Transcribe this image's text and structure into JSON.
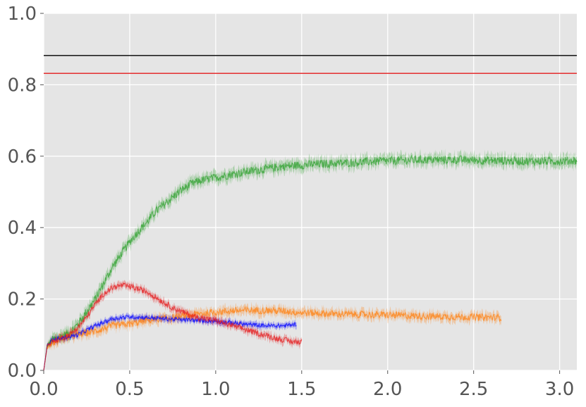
{
  "chart_data": {
    "type": "line",
    "title": "",
    "xlabel": "",
    "ylabel": "",
    "xlim": [
      0,
      3.1
    ],
    "ylim": [
      0,
      1.0
    ],
    "grid": true,
    "legend": "none",
    "background": "#e5e5e5",
    "x_ticks": [
      "0.0",
      "0.5",
      "1.0",
      "1.5",
      "2.0",
      "2.5",
      "3.0"
    ],
    "x_tick_values": [
      0.0,
      0.5,
      1.0,
      1.5,
      2.0,
      2.5,
      3.0
    ],
    "y_ticks": [
      "0.0",
      "0.2",
      "0.4",
      "0.6",
      "0.8",
      "1.0"
    ],
    "y_tick_values": [
      0.0,
      0.2,
      0.4,
      0.6,
      0.8,
      1.0
    ],
    "hlines": [
      {
        "y": 0.882,
        "color": "#000000"
      },
      {
        "y": 0.832,
        "color": "#e41a1c"
      }
    ],
    "series": [
      {
        "color": "#2ca02c",
        "noise": 0.012,
        "band": 0.015,
        "x": [
          0,
          0.02,
          0.05,
          0.1,
          0.15,
          0.2,
          0.25,
          0.3,
          0.35,
          0.4,
          0.45,
          0.5,
          0.55,
          0.6,
          0.65,
          0.7,
          0.75,
          0.8,
          0.85,
          0.9,
          0.95,
          1.0,
          1.1,
          1.2,
          1.3,
          1.4,
          1.5,
          1.6,
          1.7,
          1.8,
          1.9,
          2.0,
          2.2,
          2.4,
          2.6,
          2.8,
          3.0,
          3.1
        ],
        "values": [
          0.0,
          0.07,
          0.085,
          0.095,
          0.105,
          0.13,
          0.165,
          0.2,
          0.245,
          0.29,
          0.325,
          0.36,
          0.39,
          0.415,
          0.445,
          0.465,
          0.485,
          0.505,
          0.52,
          0.53,
          0.535,
          0.54,
          0.55,
          0.558,
          0.565,
          0.572,
          0.575,
          0.578,
          0.58,
          0.582,
          0.585,
          0.587,
          0.59,
          0.59,
          0.588,
          0.586,
          0.586,
          0.588
        ]
      },
      {
        "color": "#ff7f0e",
        "noise": 0.01,
        "band": 0.012,
        "x": [
          0,
          0.02,
          0.05,
          0.1,
          0.2,
          0.3,
          0.4,
          0.5,
          0.6,
          0.7,
          0.8,
          0.9,
          1.0,
          1.1,
          1.2,
          1.3,
          1.4,
          1.5,
          1.6,
          1.7,
          1.8,
          1.9,
          2.0,
          2.2,
          2.4,
          2.66
        ],
        "values": [
          0.0,
          0.065,
          0.078,
          0.09,
          0.1,
          0.11,
          0.125,
          0.13,
          0.14,
          0.145,
          0.15,
          0.158,
          0.163,
          0.167,
          0.168,
          0.168,
          0.166,
          0.162,
          0.16,
          0.158,
          0.157,
          0.156,
          0.155,
          0.152,
          0.15,
          0.148
        ]
      },
      {
        "color": "#0000ff",
        "noise": 0.006,
        "band": 0.008,
        "x": [
          0,
          0.02,
          0.05,
          0.1,
          0.2,
          0.3,
          0.4,
          0.5,
          0.6,
          0.7,
          0.8,
          0.9,
          1.0,
          1.1,
          1.2,
          1.3,
          1.4,
          1.47
        ],
        "values": [
          0.0,
          0.07,
          0.085,
          0.09,
          0.1,
          0.125,
          0.145,
          0.15,
          0.148,
          0.145,
          0.142,
          0.14,
          0.138,
          0.133,
          0.128,
          0.125,
          0.125,
          0.13
        ]
      },
      {
        "color": "#e41a1c",
        "noise": 0.008,
        "band": 0.01,
        "x": [
          0,
          0.02,
          0.05,
          0.1,
          0.15,
          0.2,
          0.25,
          0.3,
          0.35,
          0.4,
          0.45,
          0.5,
          0.55,
          0.6,
          0.65,
          0.7,
          0.75,
          0.8,
          0.85,
          0.9,
          0.95,
          1.0,
          1.05,
          1.1,
          1.15,
          1.2,
          1.25,
          1.3,
          1.35,
          1.4,
          1.45,
          1.5
        ],
        "values": [
          0.0,
          0.07,
          0.08,
          0.09,
          0.1,
          0.12,
          0.15,
          0.185,
          0.215,
          0.232,
          0.238,
          0.235,
          0.228,
          0.22,
          0.205,
          0.19,
          0.175,
          0.165,
          0.155,
          0.148,
          0.143,
          0.14,
          0.132,
          0.125,
          0.118,
          0.11,
          0.103,
          0.097,
          0.09,
          0.085,
          0.08,
          0.08
        ]
      }
    ]
  }
}
